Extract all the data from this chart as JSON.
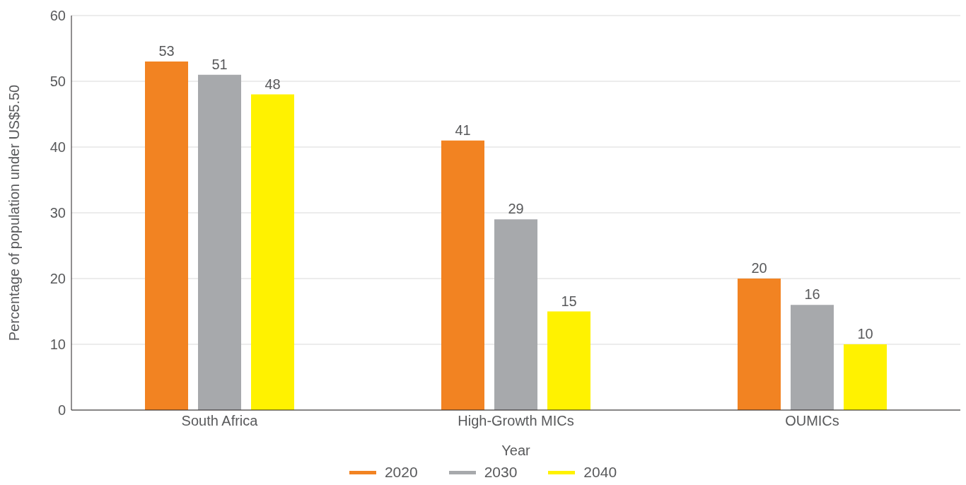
{
  "chart_data": {
    "type": "bar",
    "xlabel": "Year",
    "ylabel": "Percentage of population under US$5.50",
    "categories": [
      "South Africa",
      "High-Growth MICs",
      "OUMICs"
    ],
    "series": [
      {
        "name": "2020",
        "color": "#f28322",
        "values": [
          53,
          41,
          20
        ]
      },
      {
        "name": "2030",
        "color": "#a7a9ac",
        "values": [
          51,
          29,
          16
        ]
      },
      {
        "name": "2040",
        "color": "#fff200",
        "values": [
          48,
          15,
          10
        ]
      }
    ],
    "ylim": [
      0,
      60
    ],
    "yticks": [
      0,
      10,
      20,
      30,
      40,
      50,
      60
    ],
    "grid": "y",
    "legend": "bottom",
    "data_labels": true
  }
}
